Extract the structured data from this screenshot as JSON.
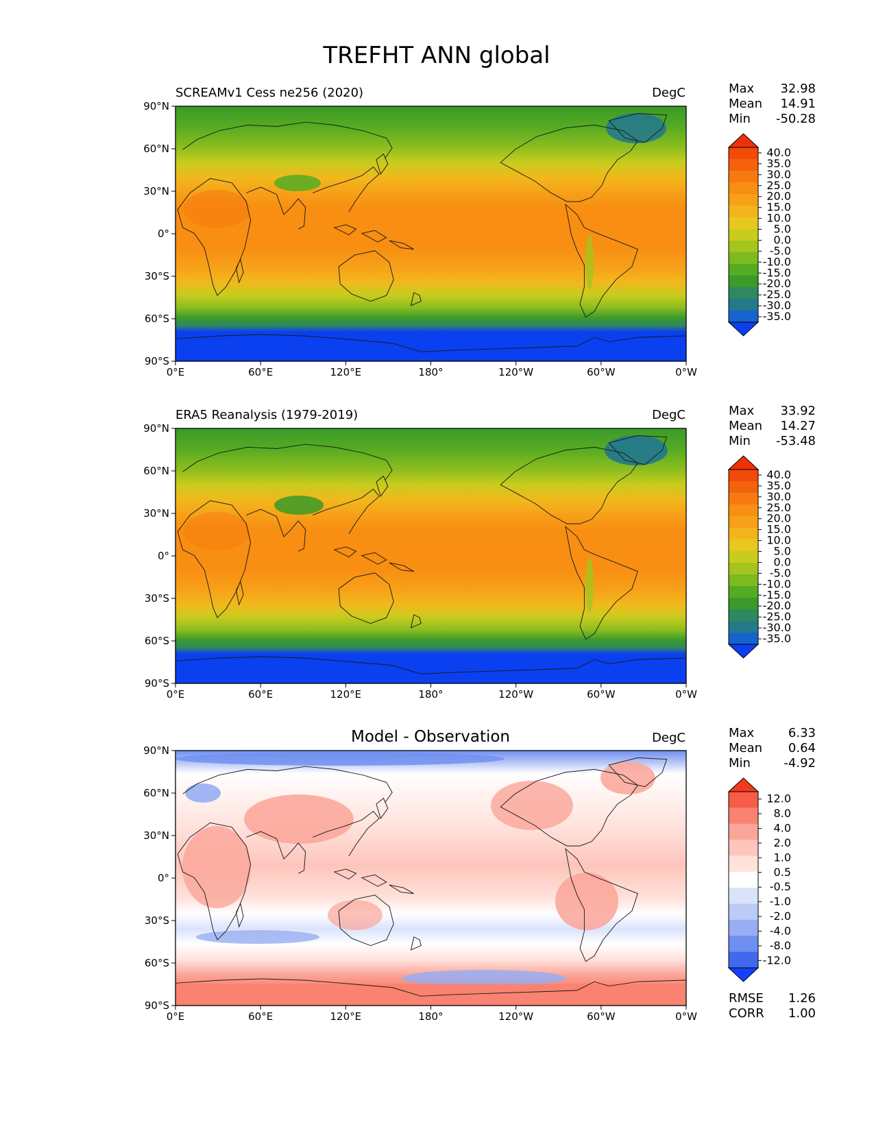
{
  "figure_title": "TREFHT ANN global",
  "lon_ticks": [
    "0°E",
    "60°E",
    "120°E",
    "180°",
    "120°W",
    "60°W",
    "0°W"
  ],
  "lat_ticks": [
    "90°N",
    "60°N",
    "30°N",
    "0°",
    "30°S",
    "60°S",
    "90°S"
  ],
  "colors": {
    "abs_levels": [
      "#0a40f0",
      "#1663d0",
      "#257a8a",
      "#2f8860",
      "#3a9a2a",
      "#55ab22",
      "#7cba1e",
      "#a3c51e",
      "#c8cc1e",
      "#e8c81e",
      "#f5b41c",
      "#f7a018",
      "#f88e12",
      "#f77a10",
      "#f4620c",
      "#f24a08",
      "#f03006"
    ],
    "diff_levels": [
      "#1440ff",
      "#4268ee",
      "#6e8ef0",
      "#97aef2",
      "#bccaf6",
      "#dbe3fb",
      "#ffffff",
      "#ffe2dc",
      "#fdc5bb",
      "#fba598",
      "#f98270",
      "#f65c48",
      "#f23a1e"
    ]
  },
  "chart_data": [
    {
      "type": "heatmap",
      "title": "SCREAMv1 Cess ne256 (2020)",
      "units": "DegC",
      "stats": {
        "max_label": "Max",
        "max": "32.98",
        "mean_label": "Mean",
        "mean": "14.91",
        "min_label": "Min",
        "min": "-50.28"
      },
      "colorbar_ticks": [
        "40.0",
        "35.0",
        "30.0",
        "25.0",
        "20.0",
        "15.0",
        "10.0",
        "5.0",
        "0.0",
        "-5.0",
        "-10.0",
        "-15.0",
        "-20.0",
        "-25.0",
        "-30.0",
        "-35.0"
      ],
      "field_kind": "abs"
    },
    {
      "type": "heatmap",
      "title": "ERA5 Reanalysis (1979-2019)",
      "units": "DegC",
      "stats": {
        "max_label": "Max",
        "max": "33.92",
        "mean_label": "Mean",
        "mean": "14.27",
        "min_label": "Min",
        "min": "-53.48"
      },
      "colorbar_ticks": [
        "40.0",
        "35.0",
        "30.0",
        "25.0",
        "20.0",
        "15.0",
        "10.0",
        "5.0",
        "0.0",
        "-5.0",
        "-10.0",
        "-15.0",
        "-20.0",
        "-25.0",
        "-30.0",
        "-35.0"
      ],
      "field_kind": "abs"
    },
    {
      "type": "heatmap",
      "title": "Model - Observation",
      "units": "DegC",
      "stats": {
        "max_label": "Max",
        "max": "6.33",
        "mean_label": "Mean",
        "mean": "0.64",
        "min_label": "Min",
        "min": "-4.92"
      },
      "colorbar_ticks": [
        "12.0",
        "8.0",
        "4.0",
        "2.0",
        "1.0",
        "0.5",
        "-0.5",
        "-1.0",
        "-2.0",
        "-4.0",
        "-8.0",
        "-12.0"
      ],
      "field_kind": "diff",
      "metrics": {
        "rmse_label": "RMSE",
        "rmse": "1.26",
        "corr_label": "CORR",
        "corr": "1.00"
      }
    }
  ]
}
